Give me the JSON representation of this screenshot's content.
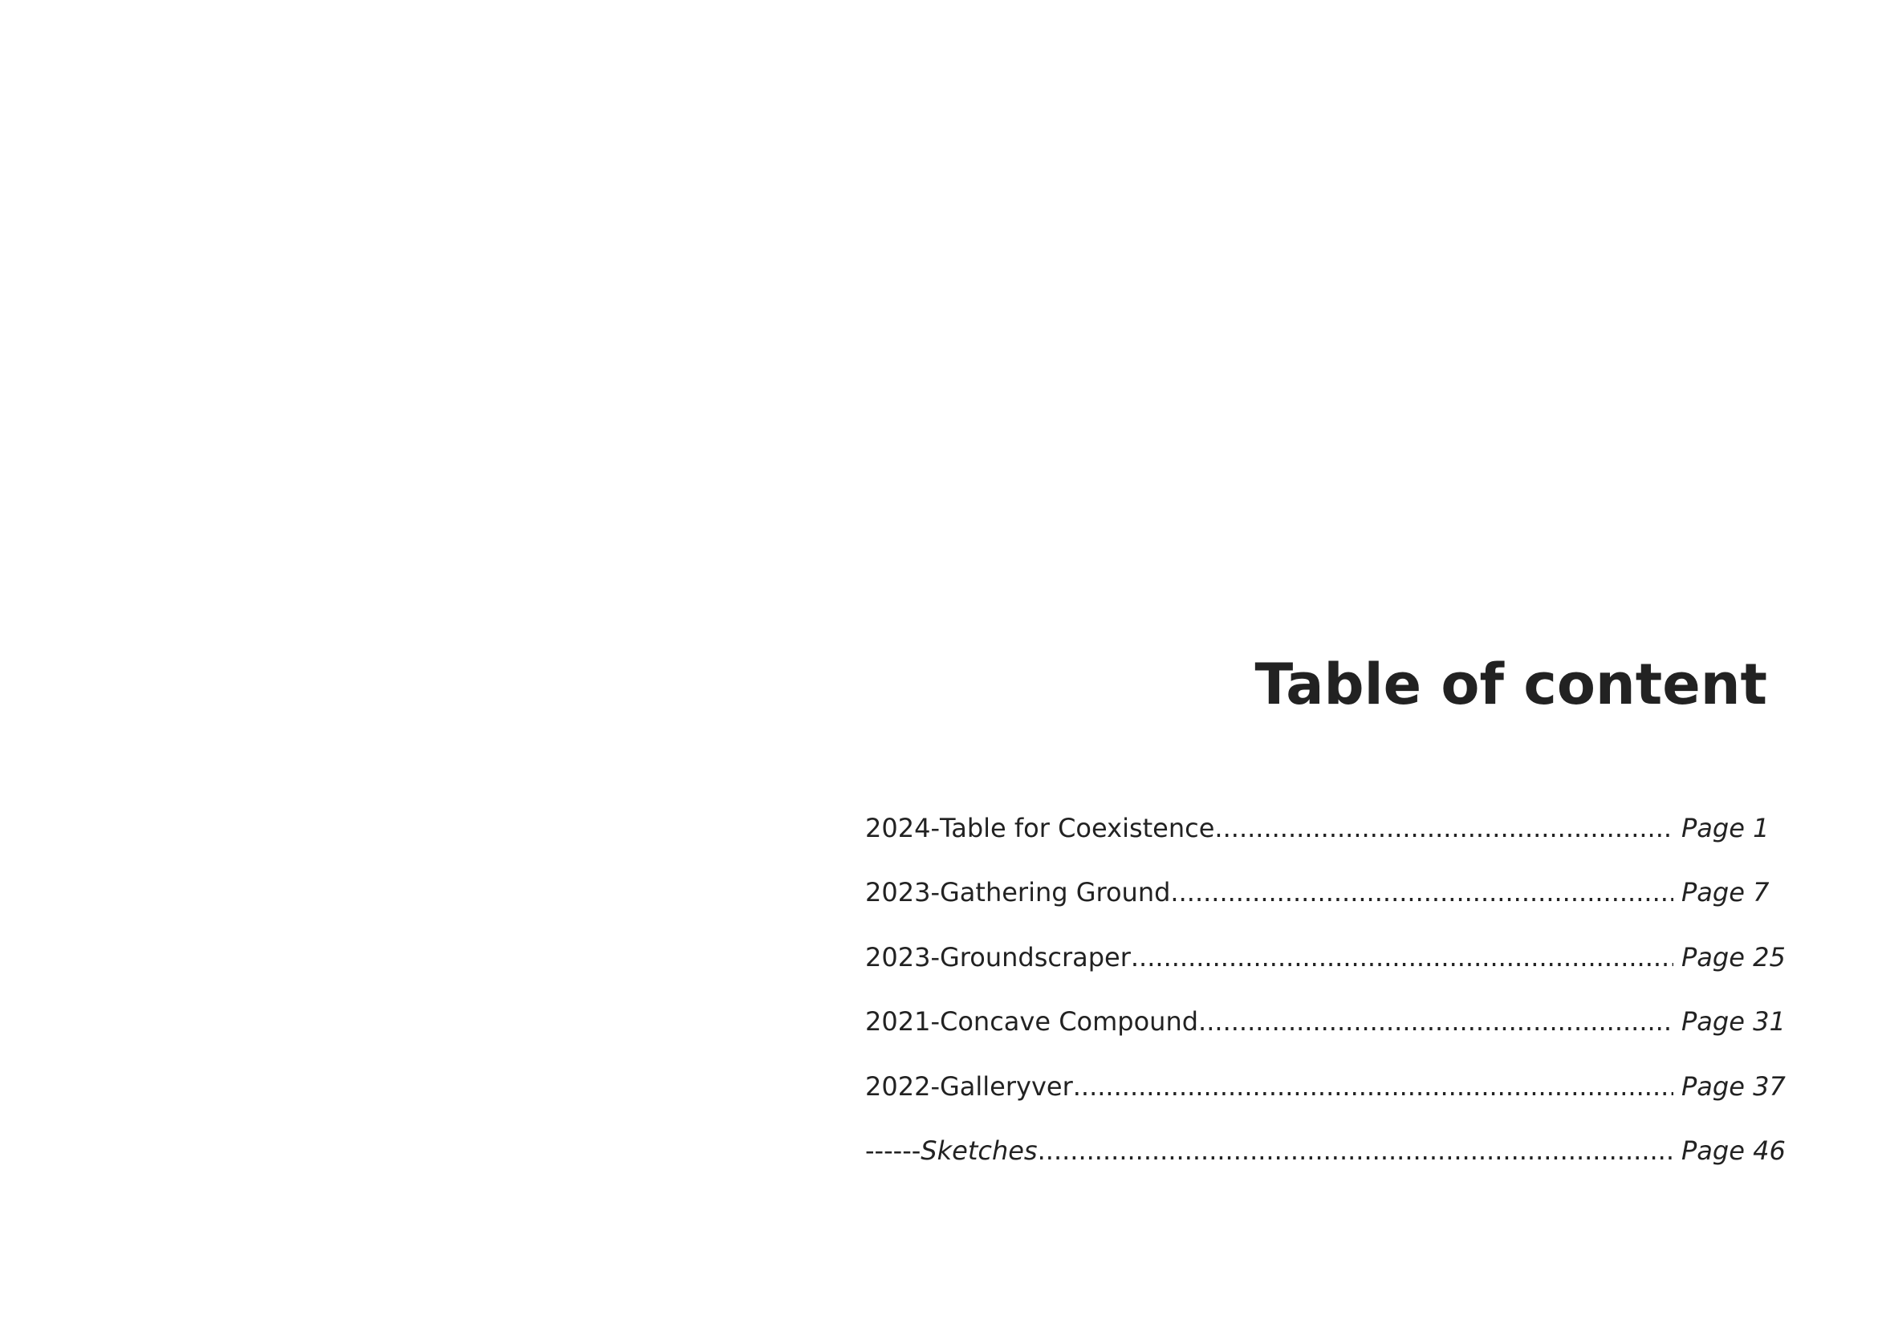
{
  "title": "Table of content",
  "entries": [
    {
      "prefix": "2024- ",
      "label": "Table for Coexistence",
      "page": "Page 1",
      "italic": false
    },
    {
      "prefix": "2023- ",
      "label": "Gathering Ground",
      "page": "Page 7",
      "italic": false
    },
    {
      "prefix": "2023- ",
      "label": "Groundscraper",
      "page": "Page 25",
      "italic": false
    },
    {
      "prefix": "2021- ",
      "label": "Concave Compound",
      "page": "Page 31",
      "italic": false
    },
    {
      "prefix": "2022- ",
      "label": "Galleryver",
      "page": "Page 37",
      "italic": false
    },
    {
      "prefix": "------ ",
      "label": "Sketches",
      "page": "Page 46",
      "italic": true
    }
  ],
  "leader_char": "."
}
